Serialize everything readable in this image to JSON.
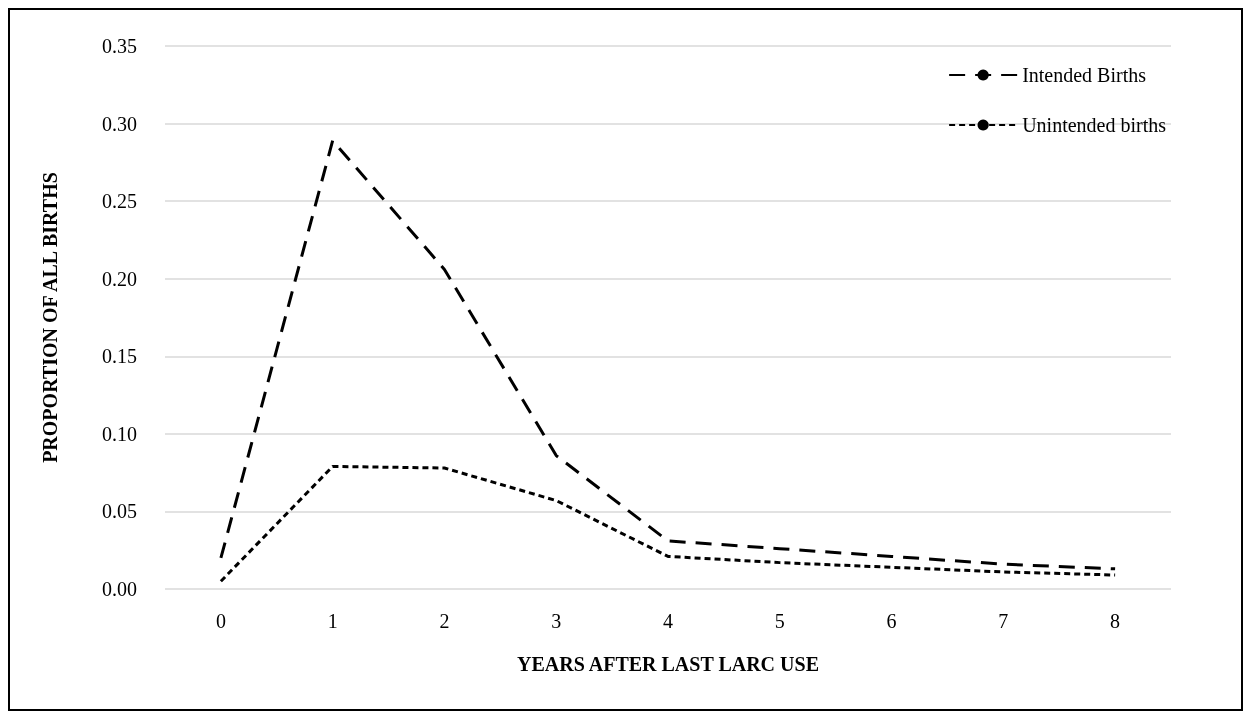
{
  "chart_data": {
    "type": "line",
    "xlabel": "YEARS AFTER LAST LARC USE",
    "ylabel": "PROPORTION OF ALL BIRTHS",
    "categories": [
      "0",
      "1",
      "2",
      "3",
      "4",
      "5",
      "6",
      "7",
      "8"
    ],
    "series": [
      {
        "name": "Intended Births",
        "color": "#000000",
        "line_style": "dashed",
        "values": [
          0.02,
          0.289,
          0.206,
          0.086,
          0.031,
          0.026,
          0.021,
          0.016,
          0.013
        ]
      },
      {
        "name": "Unintended births",
        "color": "#000000",
        "line_style": "dotted",
        "values": [
          0.005,
          0.079,
          0.078,
          0.057,
          0.021,
          0.017,
          0.014,
          0.011,
          0.009
        ]
      }
    ],
    "ylim": [
      0,
      0.35
    ],
    "yticks": [
      {
        "value": 0,
        "label": "0.00"
      },
      0.05,
      {
        "value": 0.1,
        "label": "0.10"
      },
      0.15,
      {
        "value": 0.2,
        "label": "0.20"
      },
      0.25,
      {
        "value": 0.3,
        "label": "0.30"
      },
      0.35
    ],
    "grid": "y",
    "legend": "top right",
    "marker": "none"
  }
}
